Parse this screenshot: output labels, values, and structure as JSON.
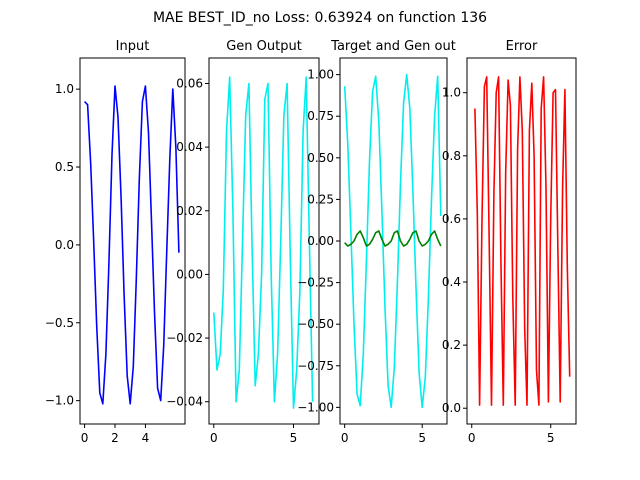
{
  "figure": {
    "suptitle": "MAE BEST_ID_no Loss: 0.63924 on function 136"
  },
  "chart_data": [
    {
      "type": "line",
      "title": "Input",
      "xlabel": "",
      "ylabel": "",
      "xlim": [
        -0.3,
        6.6
      ],
      "ylim": [
        -1.15,
        1.2
      ],
      "xticks": [
        0,
        2,
        4
      ],
      "yticks": [
        -1.0,
        -0.5,
        0.0,
        0.5,
        1.0
      ],
      "ytick_labels": [
        "−1.0",
        "−0.5",
        "0.0",
        "0.5",
        "1.0"
      ],
      "grid": false,
      "series": [
        {
          "color": "#0000ff",
          "x": [
            0.0,
            0.2,
            0.4,
            0.6,
            0.8,
            1.0,
            1.2,
            1.4,
            1.6,
            1.8,
            2.0,
            2.2,
            2.4,
            2.6,
            2.8,
            3.0,
            3.2,
            3.4,
            3.6,
            3.8,
            4.0,
            4.2,
            4.4,
            4.6,
            4.8,
            5.0,
            5.2,
            5.4,
            5.6,
            5.8,
            6.0,
            6.2
          ],
          "y": [
            0.92,
            0.9,
            0.52,
            0.02,
            -0.52,
            -0.95,
            -1.02,
            -0.7,
            -0.12,
            0.58,
            1.02,
            0.82,
            0.3,
            -0.32,
            -0.84,
            -1.02,
            -0.78,
            -0.22,
            0.42,
            0.92,
            1.02,
            0.72,
            0.15,
            -0.45,
            -0.92,
            -1.0,
            -0.65,
            -0.05,
            0.55,
            1.0,
            0.62,
            -0.05
          ]
        }
      ]
    },
    {
      "type": "line",
      "title": "Gen Output",
      "xlabel": "",
      "ylabel": "",
      "xlim": [
        -0.3,
        6.6
      ],
      "ylim": [
        -0.047,
        0.068
      ],
      "xticks": [
        0,
        5
      ],
      "yticks": [
        -0.04,
        -0.02,
        0.0,
        0.02,
        0.04,
        0.06
      ],
      "ytick_labels": [
        "−0.04",
        "−0.02",
        "0.00",
        "0.02",
        "0.04",
        "0.06"
      ],
      "grid": false,
      "series": [
        {
          "color": "#00eeee",
          "x": [
            0.0,
            0.2,
            0.4,
            0.6,
            0.8,
            1.0,
            1.2,
            1.4,
            1.6,
            1.8,
            2.0,
            2.2,
            2.4,
            2.6,
            2.8,
            3.0,
            3.2,
            3.4,
            3.6,
            3.8,
            4.0,
            4.2,
            4.4,
            4.6,
            4.8,
            5.0,
            5.2,
            5.4,
            5.6,
            5.8,
            6.0,
            6.2
          ],
          "y": [
            -0.012,
            -0.03,
            -0.025,
            -0.005,
            0.045,
            0.062,
            0.02,
            -0.04,
            -0.03,
            0.01,
            0.05,
            0.06,
            0.01,
            -0.035,
            -0.025,
            0.0,
            0.055,
            0.06,
            0.0,
            -0.04,
            -0.025,
            0.01,
            0.05,
            0.06,
            0.005,
            -0.042,
            -0.03,
            -0.005,
            0.045,
            0.062,
            0.01,
            -0.04
          ]
        }
      ]
    },
    {
      "type": "line",
      "title": "Target and Gen out",
      "xlabel": "",
      "ylabel": "",
      "xlim": [
        -0.3,
        6.6
      ],
      "ylim": [
        -1.1,
        1.1
      ],
      "xticks": [
        0,
        5
      ],
      "yticks": [
        -1.0,
        -0.75,
        -0.5,
        -0.25,
        0.0,
        0.25,
        0.5,
        0.75,
        1.0
      ],
      "ytick_labels": [
        "−1.00",
        "−0.75",
        "−0.50",
        "−0.25",
        "0.00",
        "0.25",
        "0.50",
        "0.75",
        "1.00"
      ],
      "grid": false,
      "series": [
        {
          "color": "#00eeee",
          "x": [
            0.0,
            0.2,
            0.4,
            0.6,
            0.8,
            1.0,
            1.2,
            1.4,
            1.6,
            1.8,
            2.0,
            2.2,
            2.4,
            2.6,
            2.8,
            3.0,
            3.2,
            3.4,
            3.6,
            3.8,
            4.0,
            4.2,
            4.4,
            4.6,
            4.8,
            5.0,
            5.2,
            5.4,
            5.6,
            5.8,
            6.0,
            6.2
          ],
          "y": [
            0.93,
            0.58,
            0.05,
            -0.5,
            -0.92,
            -0.99,
            -0.68,
            -0.12,
            0.48,
            0.9,
            0.99,
            0.72,
            0.18,
            -0.4,
            -0.87,
            -1.0,
            -0.76,
            -0.25,
            0.35,
            0.83,
            1.0,
            0.8,
            0.3,
            -0.28,
            -0.79,
            -1.0,
            -0.82,
            -0.34,
            0.25,
            0.75,
            0.99,
            0.15
          ]
        },
        {
          "color": "#008000",
          "x": [
            0.0,
            0.2,
            0.4,
            0.6,
            0.8,
            1.0,
            1.2,
            1.4,
            1.6,
            1.8,
            2.0,
            2.2,
            2.4,
            2.6,
            2.8,
            3.0,
            3.2,
            3.4,
            3.6,
            3.8,
            4.0,
            4.2,
            4.4,
            4.6,
            4.8,
            5.0,
            5.2,
            5.4,
            5.6,
            5.8,
            6.0,
            6.2
          ],
          "y": [
            -0.01,
            -0.03,
            -0.02,
            0.0,
            0.04,
            0.06,
            0.02,
            -0.03,
            -0.02,
            0.01,
            0.05,
            0.06,
            0.01,
            -0.03,
            -0.02,
            0.0,
            0.05,
            0.06,
            0.0,
            -0.03,
            -0.02,
            0.01,
            0.05,
            0.06,
            0.0,
            -0.03,
            -0.02,
            0.0,
            0.04,
            0.06,
            0.01,
            -0.03
          ]
        }
      ]
    },
    {
      "type": "line",
      "title": "Error",
      "xlabel": "",
      "ylabel": "",
      "xlim": [
        -0.3,
        6.6
      ],
      "ylim": [
        -0.05,
        1.11
      ],
      "xticks": [
        0,
        5
      ],
      "yticks": [
        0.0,
        0.2,
        0.4,
        0.6,
        0.8,
        1.0
      ],
      "ytick_labels": [
        "0.0",
        "0.2",
        "0.4",
        "0.6",
        "0.8",
        "1.0"
      ],
      "grid": false,
      "series": [
        {
          "color": "#ff0000",
          "x": [
            0.2,
            0.35,
            0.5,
            0.65,
            0.8,
            0.95,
            1.1,
            1.25,
            1.4,
            1.55,
            1.7,
            1.85,
            2.0,
            2.15,
            2.3,
            2.45,
            2.6,
            2.75,
            2.9,
            3.05,
            3.2,
            3.35,
            3.5,
            3.65,
            3.8,
            3.95,
            4.1,
            4.25,
            4.4,
            4.55,
            4.7,
            4.85,
            5.0,
            5.15,
            5.3,
            5.45,
            5.6,
            5.75,
            5.9,
            6.05,
            6.2
          ],
          "y": [
            0.95,
            0.62,
            0.01,
            0.6,
            1.02,
            1.05,
            0.55,
            0.01,
            0.68,
            1.0,
            1.05,
            0.45,
            0.01,
            0.75,
            1.04,
            0.96,
            0.35,
            0.01,
            0.82,
            1.05,
            0.88,
            0.25,
            0.01,
            0.88,
            1.03,
            0.8,
            0.12,
            0.01,
            0.95,
            1.05,
            0.7,
            0.02,
            0.6,
            1.0,
            1.01,
            0.52,
            0.02,
            0.7,
            1.01,
            0.45,
            0.1
          ]
        }
      ]
    }
  ]
}
